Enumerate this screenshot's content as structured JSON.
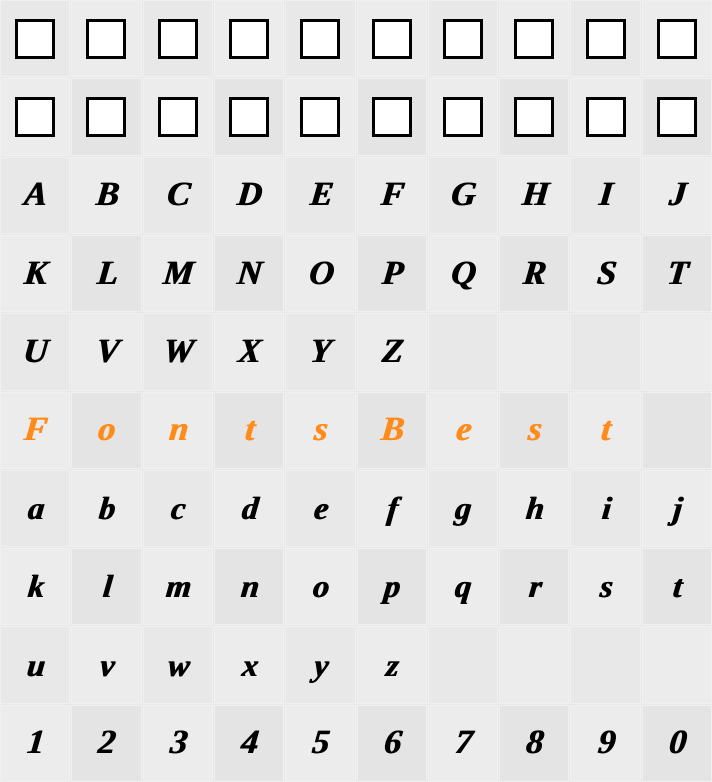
{
  "grid": {
    "cols": 10,
    "rows": 10,
    "background": "#e8e8e8",
    "alt_background": "#ececec",
    "border_color": "#f0f0f0"
  },
  "colors": {
    "glyph_default": "#000000",
    "glyph_accent": "#ff8c1a",
    "box_border": "#000000",
    "box_fill": "#ffffff"
  },
  "rows": [
    {
      "type": "box",
      "cells": [
        "",
        "",
        "",
        "",
        "",
        "",
        "",
        "",
        "",
        ""
      ]
    },
    {
      "type": "box",
      "cells": [
        "",
        "",
        "",
        "",
        "",
        "",
        "",
        "",
        "",
        ""
      ]
    },
    {
      "type": "glyph",
      "style": "upper",
      "cells": [
        "A",
        "B",
        "C",
        "D",
        "E",
        "F",
        "G",
        "H",
        "I",
        "J"
      ]
    },
    {
      "type": "glyph",
      "style": "upper",
      "cells": [
        "K",
        "L",
        "M",
        "N",
        "O",
        "P",
        "Q",
        "R",
        "S",
        "T"
      ]
    },
    {
      "type": "glyph",
      "style": "upper",
      "cells": [
        "U",
        "V",
        "W",
        "X",
        "Y",
        "Z",
        "",
        "",
        "",
        ""
      ]
    },
    {
      "type": "glyph",
      "style": "accent",
      "cells": [
        "F",
        "o",
        "n",
        "t",
        "s",
        "B",
        "e",
        "s",
        "t",
        ""
      ]
    },
    {
      "type": "glyph",
      "style": "lower",
      "cells": [
        "a",
        "b",
        "c",
        "d",
        "e",
        "f",
        "g",
        "h",
        "i",
        "j"
      ]
    },
    {
      "type": "glyph",
      "style": "lower",
      "cells": [
        "k",
        "l",
        "m",
        "n",
        "o",
        "p",
        "q",
        "r",
        "s",
        "t"
      ]
    },
    {
      "type": "glyph",
      "style": "lower",
      "cells": [
        "u",
        "v",
        "w",
        "x",
        "y",
        "z",
        "",
        "",
        "",
        ""
      ]
    },
    {
      "type": "glyph",
      "style": "num",
      "cells": [
        "1",
        "2",
        "3",
        "4",
        "5",
        "6",
        "7",
        "8",
        "9",
        "0"
      ]
    }
  ]
}
